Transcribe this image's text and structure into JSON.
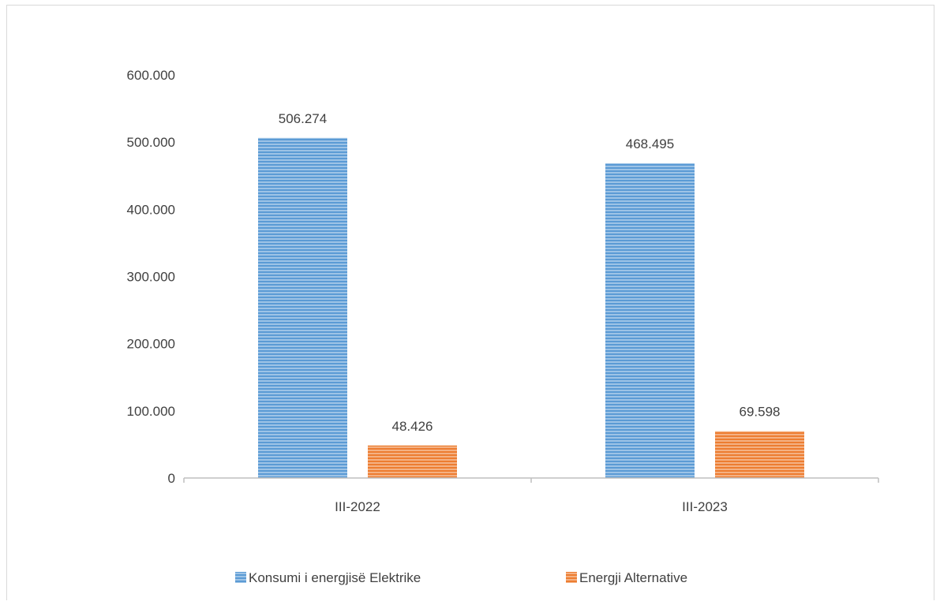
{
  "chart_data": {
    "type": "bar",
    "categories": [
      "III-2022",
      "III-2023"
    ],
    "series": [
      {
        "name": "Konsumi i energjisë Elektrike",
        "values": [
          506274,
          468495
        ],
        "labels": [
          "506.274",
          "468.495"
        ],
        "color": "#5b9bd5"
      },
      {
        "name": "Energji Alternative",
        "values": [
          48426,
          69598
        ],
        "labels": [
          "48.426",
          "69.598"
        ],
        "color": "#ed7d31"
      }
    ],
    "ylim": [
      0,
      600000
    ],
    "yticks": [
      0,
      100000,
      200000,
      300000,
      400000,
      500000,
      600000
    ],
    "ytick_labels": [
      "0",
      "100.000",
      "200.000",
      "300.000",
      "400.000",
      "500.000",
      "600.000"
    ],
    "grid": false,
    "legend_position": "bottom",
    "bar_pattern": "horizontal-stripes"
  }
}
